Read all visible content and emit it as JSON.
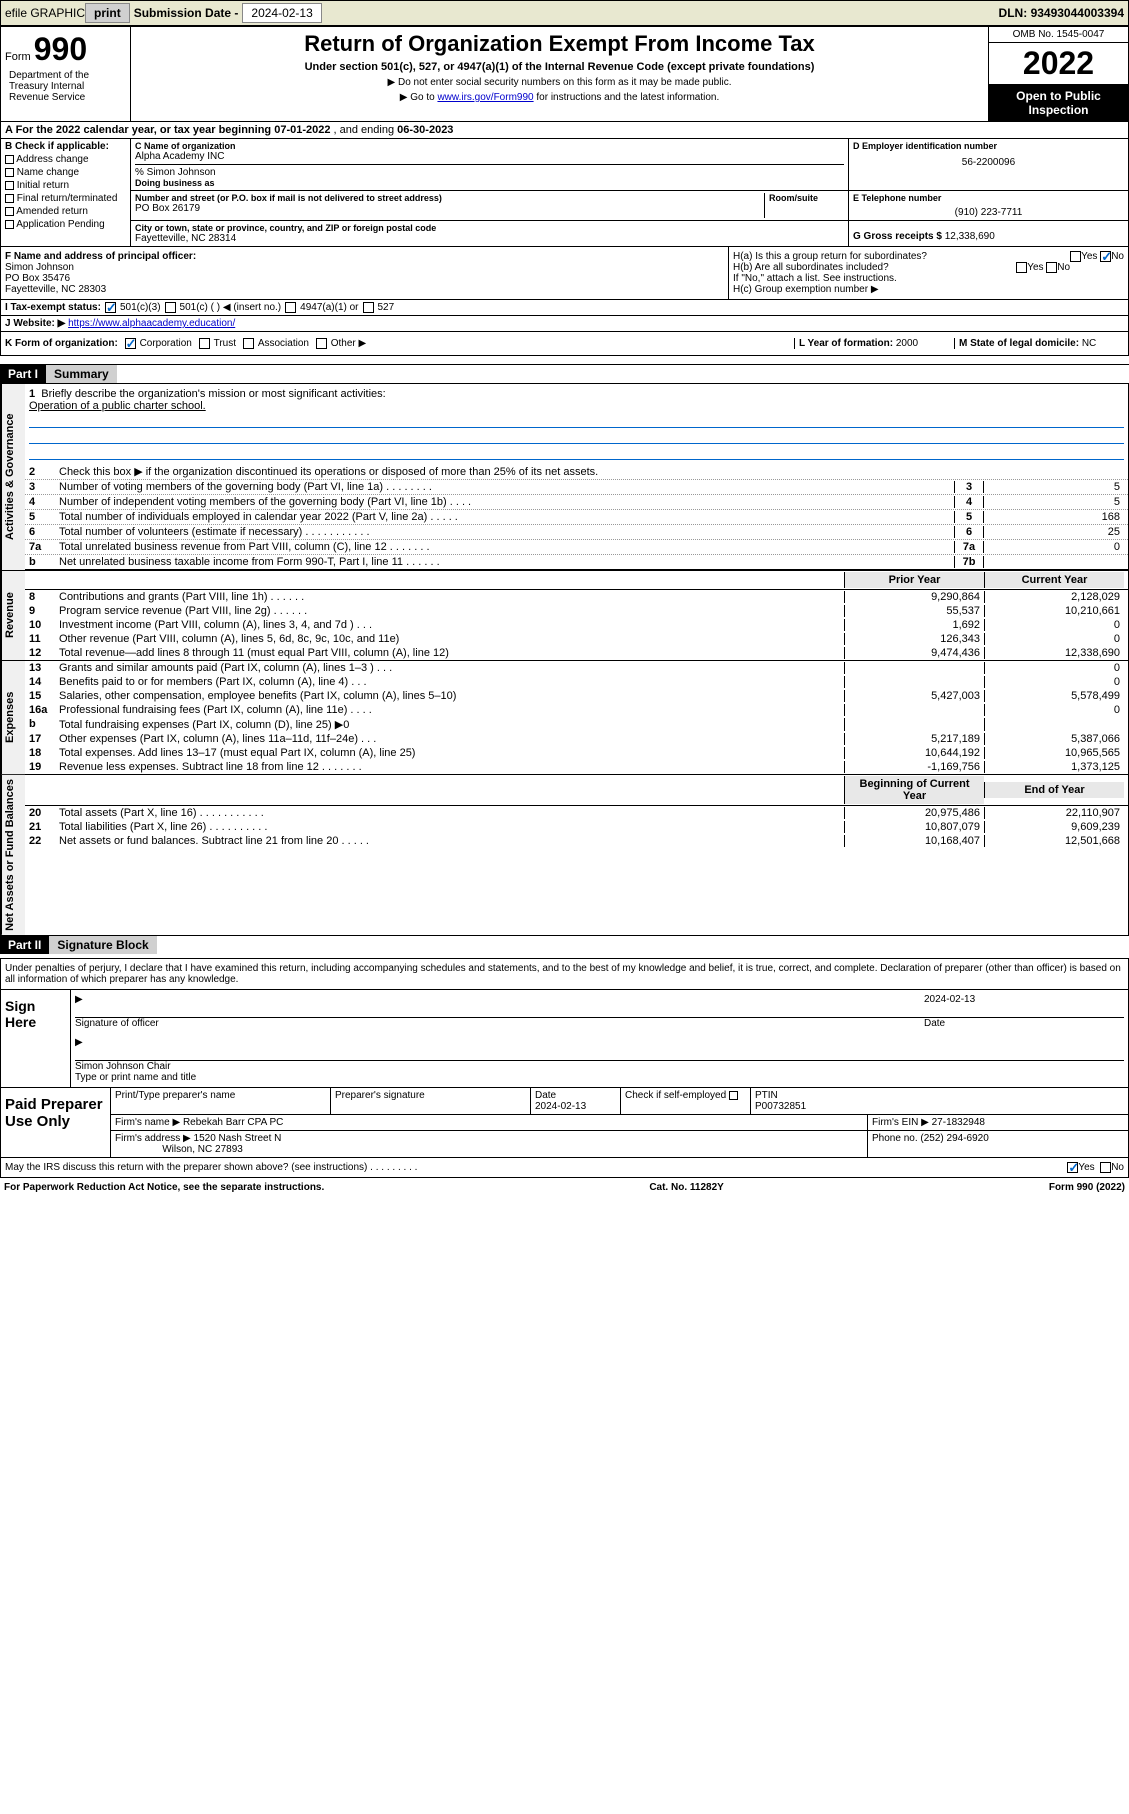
{
  "topbar": {
    "efile_label": "efile GRAPHIC",
    "print_btn": "print",
    "sub_date_label": "Submission Date -",
    "sub_date": "2024-02-13",
    "dln_label": "DLN:",
    "dln": "93493044003394"
  },
  "header": {
    "form_label": "Form",
    "form_num": "990",
    "title": "Return of Organization Exempt From Income Tax",
    "sub": "Under section 501(c), 527, or 4947(a)(1) of the Internal Revenue Code (except private foundations)",
    "note1": "▶ Do not enter social security numbers on this form as it may be made public.",
    "note2_pre": "▶ Go to ",
    "note2_link": "www.irs.gov/Form990",
    "note2_post": " for instructions and the latest information.",
    "omb": "OMB No. 1545-0047",
    "year": "2022",
    "open": "Open to Public Inspection",
    "dept": "Department of the Treasury Internal Revenue Service"
  },
  "row_a": {
    "text_pre": "A For the 2022 calendar year, or tax year beginning ",
    "begin": "07-01-2022",
    "text_mid": " , and ending ",
    "end": "06-30-2023"
  },
  "col_b": {
    "label": "B Check if applicable:",
    "addr": "Address change",
    "name": "Name change",
    "init": "Initial return",
    "final": "Final return/terminated",
    "amend": "Amended return",
    "app": "Application Pending"
  },
  "col_c": {
    "label": "C Name of organization",
    "org": "Alpha Academy INC",
    "pct": "% Simon Johnson",
    "dba_label": "Doing business as",
    "street_label": "Number and street (or P.O. box if mail is not delivered to street address)",
    "room_label": "Room/suite",
    "street": "PO Box 26179",
    "city_label": "City or town, state or province, country, and ZIP or foreign postal code",
    "city": "Fayetteville, NC  28314"
  },
  "col_d": {
    "label": "D Employer identification number",
    "ein": "56-2200096",
    "e_label": "E Telephone number",
    "phone": "(910) 223-7711",
    "g_label": "G Gross receipts $",
    "gross": "12,338,690"
  },
  "row_f": {
    "label": "F Name and address of principal officer:",
    "name": "Simon Johnson",
    "addr1": "PO Box 35476",
    "addr2": "Fayetteville, NC  28303"
  },
  "row_h": {
    "ha": "H(a) Is this a group return for subordinates?",
    "hb": "H(b) Are all subordinates included?",
    "hb_note": "If \"No,\" attach a list. See instructions.",
    "hc": "H(c) Group exemption number ▶",
    "yes": "Yes",
    "no": "No"
  },
  "row_i": {
    "label": "I    Tax-exempt status:",
    "c3": "501(c)(3)",
    "c": "501(c) (  ) ◀ (insert no.)",
    "a1": "4947(a)(1) or",
    "s527": "527"
  },
  "row_j": {
    "label": "J   Website: ▶",
    "url": "https://www.alphaacademy.education/"
  },
  "row_k": {
    "label": "K Form of organization:",
    "corp": "Corporation",
    "trust": "Trust",
    "assoc": "Association",
    "other": "Other ▶",
    "l_label": "L Year of formation:",
    "l_val": "2000",
    "m_label": "M State of legal domicile:",
    "m_val": "NC"
  },
  "parts": {
    "p1": "Part I",
    "p1_title": "Summary",
    "p2": "Part II",
    "p2_title": "Signature Block"
  },
  "summary": {
    "s1_label": "Briefly describe the organization's mission or most significant activities:",
    "s1_text": "Operation of a public charter school.",
    "s2": "Check this box ▶      if the organization discontinued its operations or disposed of more than 25% of its net assets.",
    "sections": {
      "ag": "Activities & Governance",
      "rev": "Revenue",
      "exp": "Expenses",
      "net": "Net Assets or Fund Balances"
    },
    "prior_hdr": "Prior Year",
    "curr_hdr": "Current Year",
    "boy_hdr": "Beginning of Current Year",
    "eoy_hdr": "End of Year",
    "lines": {
      "3": {
        "t": "Number of voting members of the governing body (Part VI, line 1a)   .    .    .    .    .    .    .    .",
        "b": "3",
        "v": "5"
      },
      "4": {
        "t": "Number of independent voting members of the governing body (Part VI, line 1b)    .    .    .    .",
        "b": "4",
        "v": "5"
      },
      "5": {
        "t": "Total number of individuals employed in calendar year 2022 (Part V, line 2a)    .    .    .    .    .",
        "b": "5",
        "v": "168"
      },
      "6": {
        "t": "Total number of volunteers (estimate if necessary)    .    .    .    .    .    .    .    .    .    .    .",
        "b": "6",
        "v": "25"
      },
      "7a": {
        "t": "Total unrelated business revenue from Part VIII, column (C), line 12    .    .    .    .    .    .    .",
        "b": "7a",
        "v": "0"
      },
      "7b": {
        "t": "Net unrelated business taxable income from Form 990-T, Part I, line 11    .    .    .    .    .    .",
        "b": "7b",
        "v": ""
      }
    },
    "rev_lines": [
      {
        "n": "8",
        "t": "Contributions and grants (Part VIII, line 1h)    .    .    .    .    .    .",
        "p": "9,290,864",
        "c": "2,128,029"
      },
      {
        "n": "9",
        "t": "Program service revenue (Part VIII, line 2g)    .    .    .    .    .    .",
        "p": "55,537",
        "c": "10,210,661"
      },
      {
        "n": "10",
        "t": "Investment income (Part VIII, column (A), lines 3, 4, and 7d )    .    .    .",
        "p": "1,692",
        "c": "0"
      },
      {
        "n": "11",
        "t": "Other revenue (Part VIII, column (A), lines 5, 6d, 8c, 9c, 10c, and 11e)",
        "p": "126,343",
        "c": "0"
      },
      {
        "n": "12",
        "t": "Total revenue—add lines 8 through 11 (must equal Part VIII, column (A), line 12)",
        "p": "9,474,436",
        "c": "12,338,690"
      }
    ],
    "exp_lines": [
      {
        "n": "13",
        "t": "Grants and similar amounts paid (Part IX, column (A), lines 1–3 )    .    .    .",
        "p": "",
        "c": "0"
      },
      {
        "n": "14",
        "t": "Benefits paid to or for members (Part IX, column (A), line 4)    .    .    .",
        "p": "",
        "c": "0"
      },
      {
        "n": "15",
        "t": "Salaries, other compensation, employee benefits (Part IX, column (A), lines 5–10)",
        "p": "5,427,003",
        "c": "5,578,499"
      },
      {
        "n": "16a",
        "t": "Professional fundraising fees (Part IX, column (A), line 11e)    .    .    .    .",
        "p": "",
        "c": "0"
      },
      {
        "n": "b",
        "t": "Total fundraising expenses (Part IX, column (D), line 25) ▶0",
        "p": "",
        "c": ""
      },
      {
        "n": "17",
        "t": "Other expenses (Part IX, column (A), lines 11a–11d, 11f–24e)    .    .    .",
        "p": "5,217,189",
        "c": "5,387,066"
      },
      {
        "n": "18",
        "t": "Total expenses. Add lines 13–17 (must equal Part IX, column (A), line 25)",
        "p": "10,644,192",
        "c": "10,965,565"
      },
      {
        "n": "19",
        "t": "Revenue less expenses. Subtract line 18 from line 12    .    .    .    .    .    .    .",
        "p": "-1,169,756",
        "c": "1,373,125"
      }
    ],
    "net_lines": [
      {
        "n": "20",
        "t": "Total assets (Part X, line 16)    .    .    .    .    .    .    .    .    .    .    .",
        "p": "20,975,486",
        "c": "22,110,907"
      },
      {
        "n": "21",
        "t": "Total liabilities (Part X, line 26)    .    .    .    .    .    .    .    .    .    .",
        "p": "10,807,079",
        "c": "9,609,239"
      },
      {
        "n": "22",
        "t": "Net assets or fund balances. Subtract line 21 from line 20    .    .    .    .    .",
        "p": "10,168,407",
        "c": "12,501,668"
      }
    ]
  },
  "sig": {
    "penalty": "Under penalties of perjury, I declare that I have examined this return, including accompanying schedules and statements, and to the best of my knowledge and belief, it is true, correct, and complete. Declaration of preparer (other than officer) is based on all information of which preparer has any knowledge.",
    "sign_here": "Sign Here",
    "sig_officer": "Signature of officer",
    "date": "Date",
    "date_val": "2024-02-13",
    "name_title": "Simon Johnson  Chair",
    "type_name": "Type or print name and title"
  },
  "paid": {
    "label": "Paid Preparer Use Only",
    "print_name": "Print/Type preparer's name",
    "prep_sig": "Preparer's signature",
    "date_label": "Date",
    "date_val": "2024-02-13",
    "check_label": "Check          if self-employed",
    "ptin_label": "PTIN",
    "ptin": "P00732851",
    "firm_name_label": "Firm's name      ▶",
    "firm_name": "Rebekah Barr CPA PC",
    "firm_ein_label": "Firm's EIN ▶",
    "firm_ein": "27-1832948",
    "firm_addr_label": "Firm's address ▶",
    "firm_addr1": "1520 Nash Street N",
    "firm_addr2": "Wilson, NC  27893",
    "phone_label": "Phone no.",
    "phone": "(252) 294-6920",
    "discuss": "May the IRS discuss this return with the preparer shown above? (see instructions)    .    .    .    .    .    .    .    .    .",
    "yes": "Yes",
    "no": "No"
  },
  "footer": {
    "left": "For Paperwork Reduction Act Notice, see the separate instructions.",
    "mid": "Cat. No. 11282Y",
    "right": "Form 990 (2022)"
  }
}
